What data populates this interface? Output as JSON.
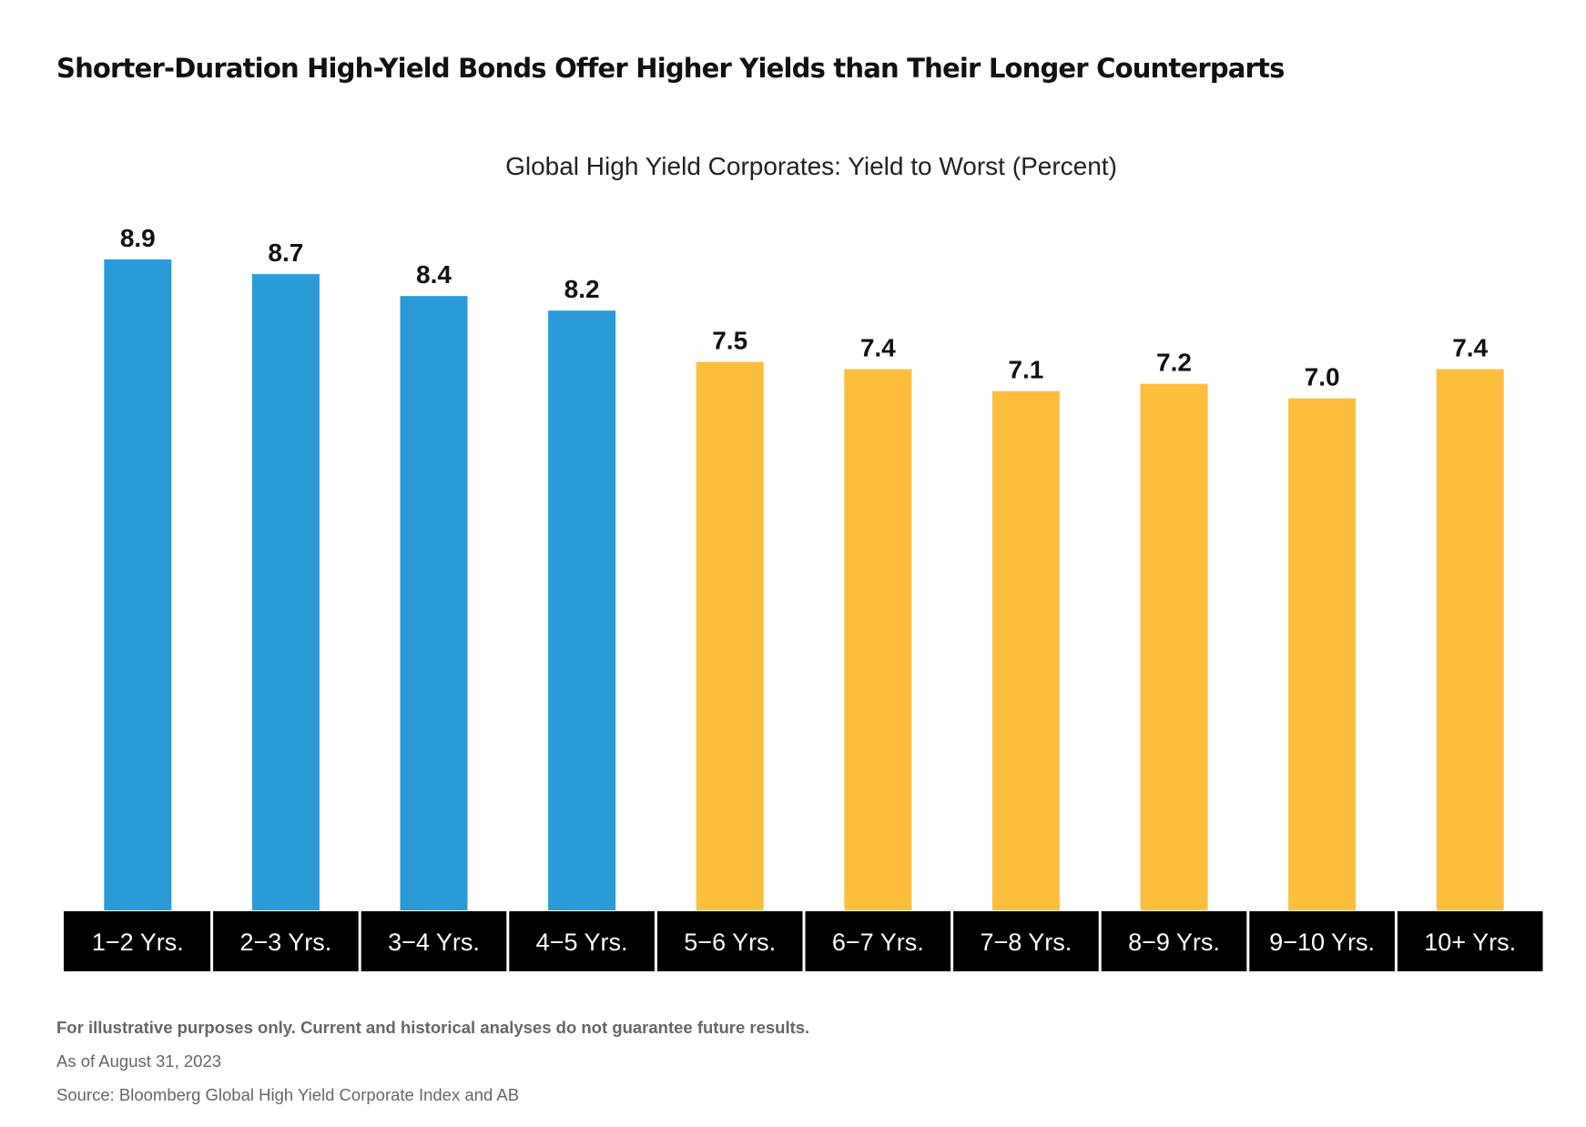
{
  "title": "Shorter-Duration High-Yield Bonds Offer Higher Yields than Their Longer Counterparts",
  "colors": {
    "short_duration": "#2A9BD6",
    "long_duration": "#FCBE3C",
    "label_band": "#000000",
    "label_text": "#FFFFFF"
  },
  "chart_data": {
    "type": "bar",
    "title": "Global High Yield Corporates: Yield to Worst (Percent)",
    "xlabel": "",
    "ylabel": "",
    "ylim": [
      0,
      8.9
    ],
    "grid": false,
    "categories": [
      "1−2 Yrs.",
      "2−3 Yrs.",
      "3−4 Yrs.",
      "4−5 Yrs.",
      "5−6 Yrs.",
      "6−7 Yrs.",
      "7−8 Yrs.",
      "8−9 Yrs.",
      "9−10 Yrs.",
      "10+ Yrs."
    ],
    "values": [
      8.9,
      8.7,
      8.4,
      8.2,
      7.5,
      7.4,
      7.1,
      7.2,
      7.0,
      7.4
    ],
    "data_labels": [
      "8.9",
      "8.7",
      "8.4",
      "8.2",
      "7.5",
      "7.4",
      "7.1",
      "7.2",
      "7.0",
      "7.4"
    ],
    "groups": [
      "short",
      "short",
      "short",
      "short",
      "long",
      "long",
      "long",
      "long",
      "long",
      "long"
    ]
  },
  "footnotes": {
    "disclaimer": "For illustrative purposes only. Current and historical analyses do not guarantee future results.",
    "as_of": "As of August 31, 2023",
    "source": "Source: Bloomberg Global High Yield Corporate Index and AB"
  }
}
